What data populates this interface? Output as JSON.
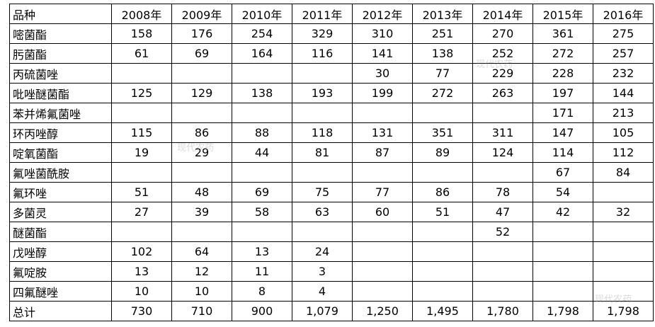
{
  "table": {
    "header": [
      "品种",
      "2008年",
      "2009年",
      "2010年",
      "2011年",
      "2012年",
      "2013年",
      "2014年",
      "2015年",
      "2016年"
    ],
    "rows": [
      [
        "嘧菌酯",
        158,
        176,
        254,
        329,
        310,
        251,
        270,
        361,
        275
      ],
      [
        "肟菌酯",
        61,
        69,
        164,
        116,
        141,
        138,
        252,
        272,
        257
      ],
      [
        "丙硫菌唑",
        null,
        null,
        null,
        null,
        30,
        77,
        229,
        228,
        232
      ],
      [
        "吡唑醚菌酯",
        125,
        129,
        138,
        193,
        199,
        272,
        263,
        197,
        144
      ],
      [
        "苯并烯氟菌唑",
        null,
        null,
        null,
        null,
        null,
        null,
        null,
        171,
        213
      ],
      [
        "环丙唑醇",
        115,
        86,
        88,
        118,
        131,
        351,
        311,
        147,
        105
      ],
      [
        "啶氧菌酯",
        19,
        29,
        44,
        81,
        87,
        89,
        124,
        114,
        112
      ],
      [
        "氟唑菌酰胺",
        null,
        null,
        null,
        null,
        null,
        null,
        null,
        67,
        84
      ],
      [
        "氟环唑",
        51,
        48,
        69,
        75,
        77,
        86,
        78,
        54,
        null
      ],
      [
        "多菌灵",
        27,
        39,
        58,
        63,
        60,
        51,
        47,
        42,
        32
      ],
      [
        "醚菌酯",
        null,
        null,
        null,
        null,
        null,
        null,
        52,
        null,
        null
      ],
      [
        "戊唑醇",
        102,
        64,
        13,
        24,
        null,
        null,
        null,
        null,
        null
      ],
      [
        "氟啶胺",
        13,
        12,
        11,
        3,
        null,
        null,
        null,
        null,
        null
      ],
      [
        "四氟醚唑",
        10,
        10,
        8,
        4,
        null,
        null,
        null,
        null,
        null
      ],
      [
        "总计",
        730,
        710,
        900,
        "1,079",
        "1,250",
        "1,495",
        "1,780",
        "1,798",
        "1,798"
      ]
    ]
  },
  "watermark": "现代农药"
}
